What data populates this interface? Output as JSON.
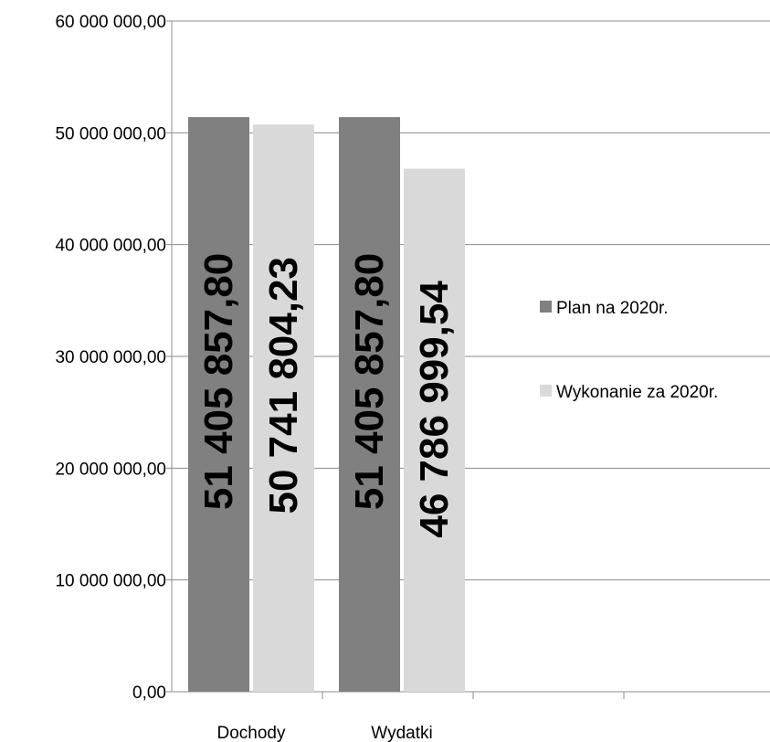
{
  "chart_data": {
    "type": "bar",
    "categories": [
      "Dochody",
      "Wydatki"
    ],
    "series": [
      {
        "name": "Plan na 2020r.",
        "values": [
          51405857.8,
          51405857.8
        ],
        "labels": [
          "51 405 857,80",
          "51 405 857,80"
        ],
        "color": "#808080"
      },
      {
        "name": "Wykonanie za 2020r.",
        "values": [
          50741804.23,
          46786999.54
        ],
        "labels": [
          "50 741 804,23",
          "46 786 999,54"
        ],
        "color": "#d9d9d9"
      }
    ],
    "ylim": [
      0,
      60000000
    ],
    "yticks": [
      0,
      10000000,
      20000000,
      30000000,
      40000000,
      50000000,
      60000000
    ],
    "ytick_labels": [
      "0,00",
      "10 000 000,00",
      "20 000 000,00",
      "30 000 000,00",
      "40 000 000,00",
      "50 000 000,00",
      "60 000 000,00"
    ],
    "grid": true,
    "legend": "right",
    "title": "",
    "xlabel": "",
    "ylabel": ""
  }
}
